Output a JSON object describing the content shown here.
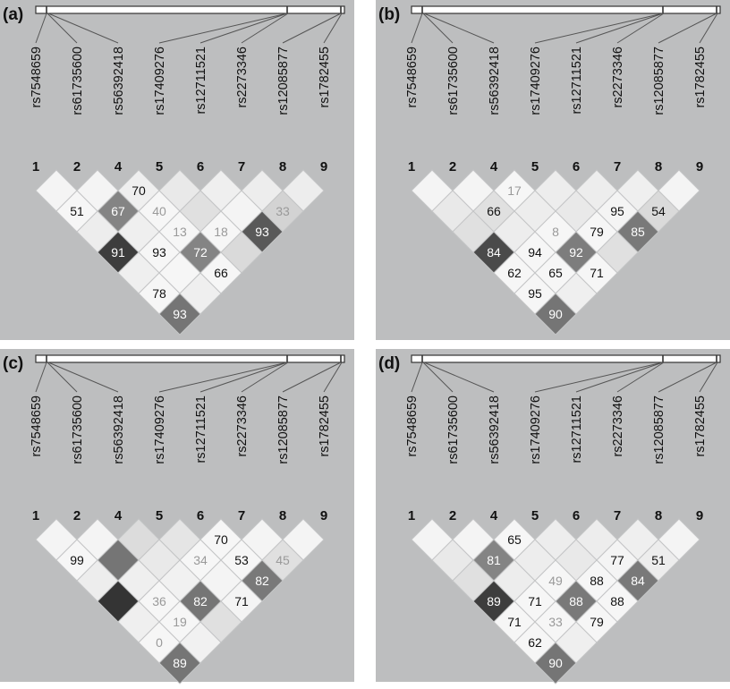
{
  "markers": [
    {
      "rs": "rs7548659",
      "num": "1"
    },
    {
      "rs": "rs61735600",
      "num": "2"
    },
    {
      "rs": "rs56392418",
      "num": "4"
    },
    {
      "rs": "rs17409276",
      "num": "5"
    },
    {
      "rs": "rs12711521",
      "num": "6"
    },
    {
      "rs": "rs2273346",
      "num": "7"
    },
    {
      "rs": "rs12085877",
      "num": "8"
    },
    {
      "rs": "rs1782455",
      "num": "9"
    }
  ],
  "colors": {
    "panel_background": "#bdbebf",
    "white_label": "#ffffff",
    "dark_label": "#111111",
    "grey_label": "#9a9a9a"
  },
  "panels": [
    {
      "label": "(a)",
      "cells": [
        {
          "i": 0,
          "j": 1,
          "shade": 0.03,
          "value": ""
        },
        {
          "i": 1,
          "j": 2,
          "shade": 0.03,
          "value": ""
        },
        {
          "i": 2,
          "j": 3,
          "shade": 0.05,
          "value": "70"
        },
        {
          "i": 3,
          "j": 4,
          "shade": 0.08,
          "value": ""
        },
        {
          "i": 4,
          "j": 5,
          "shade": 0.05,
          "value": ""
        },
        {
          "i": 5,
          "j": 6,
          "shade": 0.06,
          "value": ""
        },
        {
          "i": 6,
          "j": 7,
          "shade": 0.06,
          "value": ""
        },
        {
          "i": 0,
          "j": 2,
          "shade": 0.02,
          "value": "51"
        },
        {
          "i": 1,
          "j": 3,
          "shade": 0.55,
          "value": "67"
        },
        {
          "i": 2,
          "j": 4,
          "shade": 0.02,
          "value": "40"
        },
        {
          "i": 3,
          "j": 5,
          "shade": 0.12,
          "value": ""
        },
        {
          "i": 4,
          "j": 6,
          "shade": 0.03,
          "value": ""
        },
        {
          "i": 5,
          "j": 7,
          "shade": 0.18,
          "value": "33"
        },
        {
          "i": 0,
          "j": 3,
          "shade": 0.06,
          "value": ""
        },
        {
          "i": 1,
          "j": 4,
          "shade": 0.05,
          "value": ""
        },
        {
          "i": 2,
          "j": 5,
          "shade": 0.02,
          "value": "13"
        },
        {
          "i": 3,
          "j": 6,
          "shade": 0.02,
          "value": "18"
        },
        {
          "i": 4,
          "j": 7,
          "shade": 0.75,
          "value": "93"
        },
        {
          "i": 0,
          "j": 4,
          "shade": 0.88,
          "value": "91"
        },
        {
          "i": 1,
          "j": 5,
          "shade": 0.02,
          "value": "93"
        },
        {
          "i": 2,
          "j": 6,
          "shade": 0.55,
          "value": "72"
        },
        {
          "i": 3,
          "j": 7,
          "shade": 0.15,
          "value": ""
        },
        {
          "i": 0,
          "j": 5,
          "shade": 0.05,
          "value": ""
        },
        {
          "i": 1,
          "j": 6,
          "shade": 0.02,
          "value": ""
        },
        {
          "i": 2,
          "j": 7,
          "shade": 0.02,
          "value": "66"
        },
        {
          "i": 0,
          "j": 6,
          "shade": 0.02,
          "value": "78"
        },
        {
          "i": 1,
          "j": 7,
          "shade": 0.05,
          "value": ""
        },
        {
          "i": 0,
          "j": 7,
          "shade": 0.62,
          "value": "93"
        }
      ]
    },
    {
      "label": "(b)",
      "cells": [
        {
          "i": 0,
          "j": 1,
          "shade": 0.03,
          "value": ""
        },
        {
          "i": 1,
          "j": 2,
          "shade": 0.03,
          "value": ""
        },
        {
          "i": 2,
          "j": 3,
          "shade": 0.02,
          "value": "17"
        },
        {
          "i": 3,
          "j": 4,
          "shade": 0.06,
          "value": ""
        },
        {
          "i": 4,
          "j": 5,
          "shade": 0.06,
          "value": ""
        },
        {
          "i": 5,
          "j": 6,
          "shade": 0.05,
          "value": ""
        },
        {
          "i": 6,
          "j": 7,
          "shade": 0.03,
          "value": ""
        },
        {
          "i": 0,
          "j": 2,
          "shade": 0.08,
          "value": ""
        },
        {
          "i": 1,
          "j": 3,
          "shade": 0.12,
          "value": "66"
        },
        {
          "i": 2,
          "j": 4,
          "shade": 0.06,
          "value": ""
        },
        {
          "i": 3,
          "j": 5,
          "shade": 0.08,
          "value": ""
        },
        {
          "i": 4,
          "j": 6,
          "shade": 0.03,
          "value": "95"
        },
        {
          "i": 5,
          "j": 7,
          "shade": 0.15,
          "value": "54"
        },
        {
          "i": 0,
          "j": 3,
          "shade": 0.12,
          "value": ""
        },
        {
          "i": 1,
          "j": 4,
          "shade": 0.06,
          "value": ""
        },
        {
          "i": 2,
          "j": 5,
          "shade": 0.02,
          "value": "8"
        },
        {
          "i": 3,
          "j": 6,
          "shade": 0.02,
          "value": "79"
        },
        {
          "i": 4,
          "j": 7,
          "shade": 0.6,
          "value": "85"
        },
        {
          "i": 0,
          "j": 4,
          "shade": 0.82,
          "value": "84"
        },
        {
          "i": 1,
          "j": 5,
          "shade": 0.02,
          "value": "94"
        },
        {
          "i": 2,
          "j": 6,
          "shade": 0.58,
          "value": "92"
        },
        {
          "i": 3,
          "j": 7,
          "shade": 0.12,
          "value": ""
        },
        {
          "i": 0,
          "j": 5,
          "shade": 0.02,
          "value": "62"
        },
        {
          "i": 1,
          "j": 6,
          "shade": 0.02,
          "value": "65"
        },
        {
          "i": 2,
          "j": 7,
          "shade": 0.02,
          "value": "71"
        },
        {
          "i": 0,
          "j": 6,
          "shade": 0.02,
          "value": "95"
        },
        {
          "i": 1,
          "j": 7,
          "shade": 0.05,
          "value": ""
        },
        {
          "i": 0,
          "j": 7,
          "shade": 0.62,
          "value": "90"
        }
      ]
    },
    {
      "label": "(c)",
      "cells": [
        {
          "i": 0,
          "j": 1,
          "shade": 0.03,
          "value": ""
        },
        {
          "i": 1,
          "j": 2,
          "shade": 0.03,
          "value": ""
        },
        {
          "i": 2,
          "j": 3,
          "shade": 0.14,
          "value": ""
        },
        {
          "i": 3,
          "j": 4,
          "shade": 0.1,
          "value": ""
        },
        {
          "i": 4,
          "j": 5,
          "shade": 0.02,
          "value": "70"
        },
        {
          "i": 5,
          "j": 6,
          "shade": 0.03,
          "value": ""
        },
        {
          "i": 6,
          "j": 7,
          "shade": 0.03,
          "value": ""
        },
        {
          "i": 0,
          "j": 2,
          "shade": 0.02,
          "value": "99"
        },
        {
          "i": 1,
          "j": 3,
          "shade": 0.62,
          "value": ""
        },
        {
          "i": 2,
          "j": 4,
          "shade": 0.08,
          "value": ""
        },
        {
          "i": 3,
          "j": 5,
          "shade": 0.02,
          "value": "34"
        },
        {
          "i": 4,
          "j": 6,
          "shade": 0.02,
          "value": "53"
        },
        {
          "i": 5,
          "j": 7,
          "shade": 0.12,
          "value": "45"
        },
        {
          "i": 0,
          "j": 3,
          "shade": 0.06,
          "value": ""
        },
        {
          "i": 1,
          "j": 4,
          "shade": 0.05,
          "value": ""
        },
        {
          "i": 2,
          "j": 5,
          "shade": 0.04,
          "value": ""
        },
        {
          "i": 3,
          "j": 6,
          "shade": 0.03,
          "value": ""
        },
        {
          "i": 4,
          "j": 7,
          "shade": 0.6,
          "value": "82"
        },
        {
          "i": 0,
          "j": 4,
          "shade": 0.92,
          "value": ""
        },
        {
          "i": 1,
          "j": 5,
          "shade": 0.02,
          "value": "36"
        },
        {
          "i": 2,
          "j": 6,
          "shade": 0.62,
          "value": "82"
        },
        {
          "i": 3,
          "j": 7,
          "shade": 0.03,
          "value": "71"
        },
        {
          "i": 0,
          "j": 5,
          "shade": 0.05,
          "value": ""
        },
        {
          "i": 1,
          "j": 6,
          "shade": 0.02,
          "value": "19"
        },
        {
          "i": 2,
          "j": 7,
          "shade": 0.12,
          "value": ""
        },
        {
          "i": 0,
          "j": 6,
          "shade": 0.02,
          "value": "0"
        },
        {
          "i": 1,
          "j": 7,
          "shade": 0.04,
          "value": ""
        },
        {
          "i": 0,
          "j": 7,
          "shade": 0.62,
          "value": "89"
        }
      ]
    },
    {
      "label": "(d)",
      "cells": [
        {
          "i": 0,
          "j": 1,
          "shade": 0.03,
          "value": ""
        },
        {
          "i": 1,
          "j": 2,
          "shade": 0.03,
          "value": ""
        },
        {
          "i": 2,
          "j": 3,
          "shade": 0.02,
          "value": "65"
        },
        {
          "i": 3,
          "j": 4,
          "shade": 0.06,
          "value": ""
        },
        {
          "i": 4,
          "j": 5,
          "shade": 0.06,
          "value": ""
        },
        {
          "i": 5,
          "j": 6,
          "shade": 0.05,
          "value": ""
        },
        {
          "i": 6,
          "j": 7,
          "shade": 0.03,
          "value": ""
        },
        {
          "i": 0,
          "j": 2,
          "shade": 0.08,
          "value": ""
        },
        {
          "i": 1,
          "j": 3,
          "shade": 0.55,
          "value": "81"
        },
        {
          "i": 2,
          "j": 4,
          "shade": 0.06,
          "value": ""
        },
        {
          "i": 3,
          "j": 5,
          "shade": 0.08,
          "value": ""
        },
        {
          "i": 4,
          "j": 6,
          "shade": 0.03,
          "value": "77"
        },
        {
          "i": 5,
          "j": 7,
          "shade": 0.06,
          "value": "51"
        },
        {
          "i": 0,
          "j": 3,
          "shade": 0.12,
          "value": ""
        },
        {
          "i": 1,
          "j": 4,
          "shade": 0.06,
          "value": ""
        },
        {
          "i": 2,
          "j": 5,
          "shade": 0.02,
          "value": "49"
        },
        {
          "i": 3,
          "j": 6,
          "shade": 0.02,
          "value": "88"
        },
        {
          "i": 4,
          "j": 7,
          "shade": 0.6,
          "value": "84"
        },
        {
          "i": 0,
          "j": 4,
          "shade": 0.88,
          "value": "89"
        },
        {
          "i": 1,
          "j": 5,
          "shade": 0.02,
          "value": "71"
        },
        {
          "i": 2,
          "j": 6,
          "shade": 0.6,
          "value": "88"
        },
        {
          "i": 3,
          "j": 7,
          "shade": 0.02,
          "value": "88"
        },
        {
          "i": 0,
          "j": 5,
          "shade": 0.02,
          "value": "71"
        },
        {
          "i": 1,
          "j": 6,
          "shade": 0.02,
          "value": "33"
        },
        {
          "i": 2,
          "j": 7,
          "shade": 0.02,
          "value": "79"
        },
        {
          "i": 0,
          "j": 6,
          "shade": 0.02,
          "value": "62"
        },
        {
          "i": 1,
          "j": 7,
          "shade": 0.05,
          "value": ""
        },
        {
          "i": 0,
          "j": 7,
          "shade": 0.62,
          "value": "90"
        }
      ]
    }
  ]
}
